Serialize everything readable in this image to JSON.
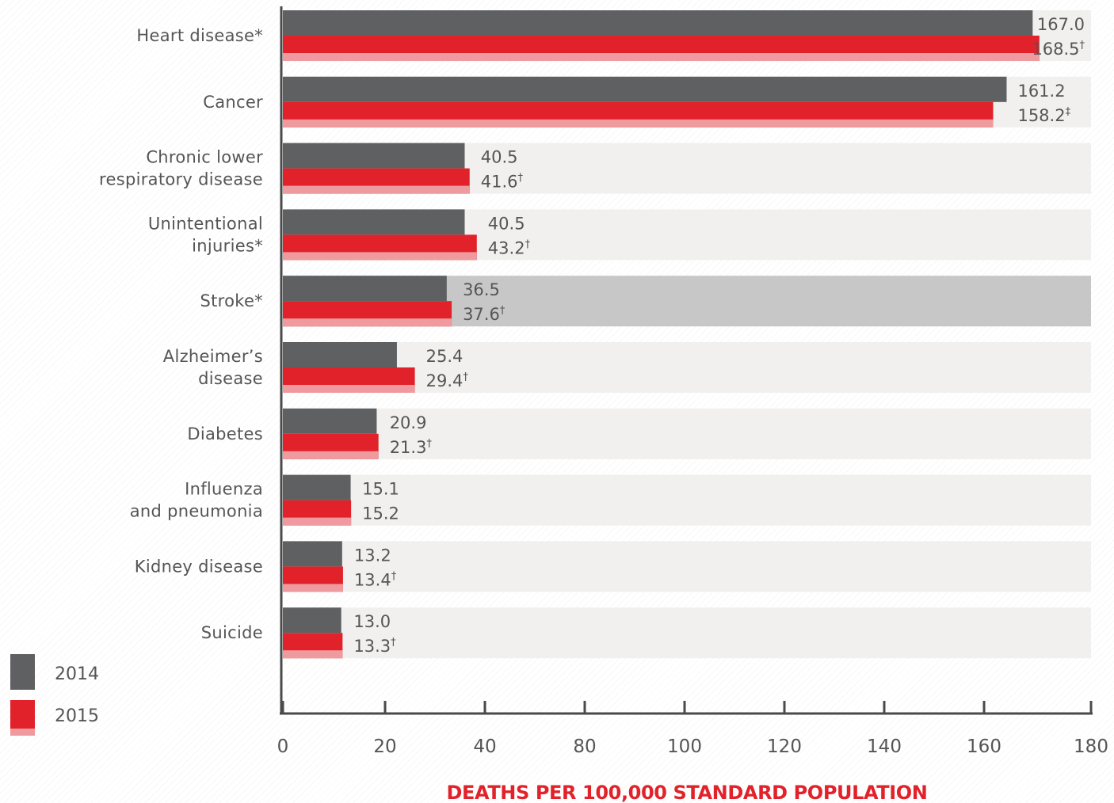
{
  "chart_data": {
    "type": "bar",
    "orientation": "horizontal",
    "xlabel": "DEATHS PER 100,000 STANDARD POPULATION",
    "xlim": [
      0,
      180
    ],
    "x_ticks": [
      "0",
      "20",
      "40",
      "80",
      "100",
      "120",
      "140",
      "160",
      "180"
    ],
    "categories": [
      "Heart disease*",
      "Cancer",
      "Chronic lower respiratory disease",
      "Unintentional injuries*",
      "Stroke*",
      "Alzheimer’s disease",
      "Diabetes",
      "Influenza and pneumonia",
      "Kidney disease",
      "Suicide"
    ],
    "category_lines": [
      [
        "Heart disease*"
      ],
      [
        "Cancer"
      ],
      [
        "Chronic lower",
        "respiratory disease"
      ],
      [
        "Unintentional",
        "injuries*"
      ],
      [
        "Stroke*"
      ],
      [
        "Alzheimer’s",
        "disease"
      ],
      [
        "Diabetes"
      ],
      [
        "Influenza",
        "and pneumonia"
      ],
      [
        "Kidney disease"
      ],
      [
        "Suicide"
      ]
    ],
    "highlighted_category": "Stroke*",
    "series": [
      {
        "name": "2014",
        "color": "#5f6062",
        "values": [
          167.0,
          161.2,
          40.5,
          40.5,
          36.5,
          25.4,
          20.9,
          15.1,
          13.2,
          13.0
        ],
        "labels": [
          "167.0",
          "161.2",
          "40.5",
          "40.5",
          "36.5",
          "25.4",
          "20.9",
          "15.1",
          "13.2",
          "13.0"
        ],
        "marks": [
          "",
          "",
          "",
          "",
          "",
          "",
          "",
          "",
          "",
          ""
        ]
      },
      {
        "name": "2015",
        "color": "#e2222a",
        "values": [
          168.5,
          158.2,
          41.6,
          43.2,
          37.6,
          29.4,
          21.3,
          15.2,
          13.4,
          13.3
        ],
        "labels": [
          "168.5",
          "158.2",
          "41.6",
          "43.2",
          "37.6",
          "29.4",
          "21.3",
          "15.2",
          "13.4",
          "13.3"
        ],
        "marks": [
          "†",
          "‡",
          "†",
          "†",
          "†",
          "†",
          "†",
          "",
          "†",
          "†"
        ]
      }
    ],
    "legend_position": "bottom-left",
    "grid": false
  }
}
